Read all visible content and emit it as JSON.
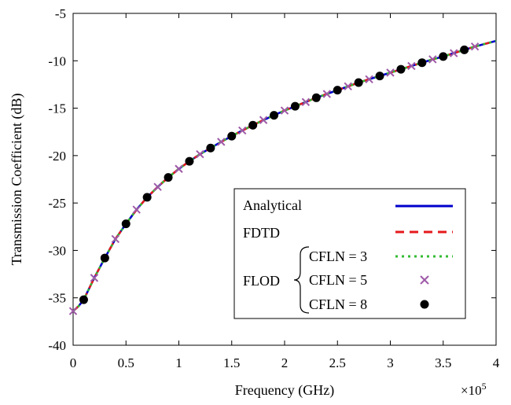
{
  "chart_data": {
    "type": "line",
    "xlabel": "Frequency (GHz)",
    "ylabel": "Transmission Coefficient (dB)",
    "x_multiplier_label": "×10",
    "x_multiplier_exponent": "5",
    "xlim": [
      0,
      4
    ],
    "ylim": [
      -40,
      -5
    ],
    "x_ticks": [
      0,
      0.5,
      1,
      1.5,
      2,
      2.5,
      3,
      3.5,
      4
    ],
    "x_tick_labels": [
      "0",
      "0.5",
      "1",
      "1.5",
      "2",
      "2.5",
      "3",
      "3.5",
      "4"
    ],
    "y_ticks": [
      -40,
      -35,
      -30,
      -25,
      -20,
      -15,
      -10,
      -5
    ],
    "y_tick_labels": [
      "-40",
      "-35",
      "-30",
      "-25",
      "-20",
      "-15",
      "-10",
      "-5"
    ],
    "grid": false,
    "legend_position": "bottom-right",
    "series": [
      {
        "name": "Analytical",
        "style": "solid-line",
        "color": "#0000cc",
        "x": [
          0,
          0.05,
          0.1,
          0.2,
          0.3,
          0.4,
          0.5,
          0.6,
          0.7,
          0.8,
          0.9,
          1.0,
          1.1,
          1.2,
          1.3,
          1.4,
          1.5,
          1.6,
          1.7,
          1.8,
          1.9,
          2.0,
          2.1,
          2.2,
          2.3,
          2.4,
          2.5,
          2.6,
          2.7,
          2.8,
          2.9,
          3.0,
          3.1,
          3.2,
          3.3,
          3.4,
          3.5,
          3.6,
          3.7,
          3.8,
          3.9,
          4.0
        ],
        "y": [
          -36.4,
          -35.9,
          -35.2,
          -32.9,
          -30.8,
          -28.8,
          -27.2,
          -25.7,
          -24.4,
          -23.3,
          -22.3,
          -21.4,
          -20.6,
          -19.85,
          -19.2,
          -18.55,
          -17.95,
          -17.35,
          -16.8,
          -16.25,
          -15.75,
          -15.25,
          -14.8,
          -14.35,
          -13.9,
          -13.5,
          -13.1,
          -12.7,
          -12.3,
          -11.95,
          -11.6,
          -11.25,
          -10.9,
          -10.55,
          -10.2,
          -9.85,
          -9.55,
          -9.2,
          -8.85,
          -8.5,
          -8.2,
          -7.9
        ]
      },
      {
        "name": "FDTD",
        "style": "dashed-line",
        "color": "#e41a1c",
        "x": [
          0,
          0.05,
          0.1,
          0.2,
          0.3,
          0.4,
          0.5,
          0.6,
          0.7,
          0.8,
          0.9,
          1.0,
          1.1,
          1.2,
          1.3,
          1.4,
          1.5,
          1.6,
          1.7,
          1.8,
          1.9,
          2.0,
          2.1,
          2.2,
          2.3,
          2.4,
          2.5,
          2.6,
          2.7,
          2.8,
          2.9,
          3.0,
          3.1,
          3.2,
          3.3,
          3.4,
          3.5,
          3.6,
          3.7,
          3.8,
          3.9,
          4.0
        ],
        "y": [
          -36.4,
          -35.9,
          -35.2,
          -32.9,
          -30.8,
          -28.8,
          -27.2,
          -25.7,
          -24.4,
          -23.3,
          -22.3,
          -21.4,
          -20.6,
          -19.85,
          -19.2,
          -18.55,
          -17.95,
          -17.35,
          -16.8,
          -16.25,
          -15.75,
          -15.25,
          -14.8,
          -14.35,
          -13.9,
          -13.5,
          -13.1,
          -12.7,
          -12.3,
          -11.95,
          -11.6,
          -11.25,
          -10.9,
          -10.55,
          -10.2,
          -9.85,
          -9.55,
          -9.2,
          -8.85,
          -8.5,
          -8.2,
          -7.9
        ]
      },
      {
        "name": "CFLN = 3",
        "style": "dotted-line",
        "color": "#33bb33",
        "x": [
          0,
          0.05,
          0.1,
          0.2,
          0.3,
          0.4,
          0.5,
          0.6,
          0.7,
          0.8,
          0.9,
          1.0,
          1.1,
          1.2,
          1.3,
          1.4,
          1.5,
          1.6,
          1.7,
          1.8,
          1.9,
          2.0,
          2.1,
          2.2,
          2.3,
          2.4,
          2.5,
          2.6,
          2.7,
          2.8,
          2.9,
          3.0,
          3.1,
          3.2,
          3.3,
          3.4,
          3.5,
          3.6,
          3.7,
          3.8,
          3.9,
          4.0
        ],
        "y": [
          -36.4,
          -35.9,
          -35.2,
          -32.9,
          -30.8,
          -28.8,
          -27.2,
          -25.7,
          -24.4,
          -23.3,
          -22.3,
          -21.4,
          -20.6,
          -19.85,
          -19.2,
          -18.55,
          -17.95,
          -17.35,
          -16.8,
          -16.25,
          -15.75,
          -15.25,
          -14.8,
          -14.35,
          -13.9,
          -13.5,
          -13.1,
          -12.7,
          -12.3,
          -11.95,
          -11.6,
          -11.25,
          -10.9,
          -10.55,
          -10.2,
          -9.85,
          -9.55,
          -9.2,
          -8.85,
          -8.5,
          -8.2,
          -7.9
        ]
      },
      {
        "name": "CFLN = 5",
        "style": "x-markers",
        "color": "#9e5aa8",
        "x": [
          0,
          0.2,
          0.4,
          0.6,
          0.8,
          1.0,
          1.2,
          1.4,
          1.6,
          1.8,
          2.0,
          2.2,
          2.4,
          2.6,
          2.8,
          3.0,
          3.2,
          3.4,
          3.6,
          3.8
        ],
        "y": [
          -36.4,
          -32.9,
          -28.8,
          -25.7,
          -23.3,
          -21.4,
          -19.85,
          -18.55,
          -17.35,
          -16.25,
          -15.25,
          -14.35,
          -13.5,
          -12.7,
          -11.95,
          -11.25,
          -10.55,
          -9.85,
          -9.2,
          -8.5
        ]
      },
      {
        "name": "CFLN = 8",
        "style": "filled-circle-markers",
        "color": "#000000",
        "x": [
          0.1,
          0.3,
          0.5,
          0.7,
          0.9,
          1.1,
          1.3,
          1.5,
          1.7,
          1.9,
          2.1,
          2.3,
          2.5,
          2.7,
          2.9,
          3.1,
          3.3,
          3.5,
          3.7
        ],
        "y": [
          -35.2,
          -30.8,
          -27.2,
          -24.4,
          -22.3,
          -20.6,
          -19.2,
          -17.95,
          -16.8,
          -15.75,
          -14.8,
          -13.9,
          -13.1,
          -12.3,
          -11.6,
          -10.9,
          -10.2,
          -9.55,
          -8.85
        ]
      }
    ],
    "legend": {
      "entries": [
        "Analytical",
        "FDTD",
        "CFLN = 3",
        "CFLN = 5",
        "CFLN = 8"
      ],
      "group_label": "FLOD"
    }
  }
}
